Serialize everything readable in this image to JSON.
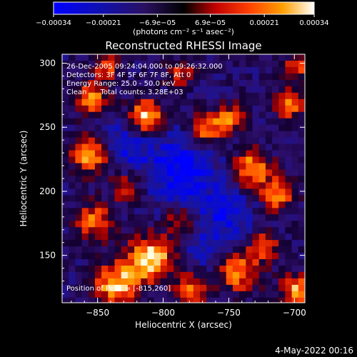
{
  "chart_data": {
    "type": "heatmap",
    "title": "Reconstructed RHESSI Image",
    "xlabel": "Heliocentric X (arcsec)",
    "ylabel": "Heliocentric Y (arcsec)",
    "xlim": [
      -877,
      -692
    ],
    "ylim": [
      113,
      307
    ],
    "x_ticks": [
      -850,
      -800,
      -750,
      -700
    ],
    "x_tick_labels": [
      "−850",
      "−800",
      "−750",
      "−700"
    ],
    "y_ticks": [
      150,
      200,
      250,
      300
    ],
    "y_tick_labels": [
      "150",
      "200",
      "250",
      "300"
    ],
    "colorbar": {
      "range": [
        -0.00034,
        0.00034
      ],
      "tick_values": [
        -0.00034,
        -0.00021,
        -6.9e-05,
        6.9e-05,
        0.00021,
        0.00034
      ],
      "tick_labels": [
        "−0.00034",
        "−0.00021",
        "−6.9e−05",
        "6.9e−05",
        "0.00021",
        "0.00034"
      ],
      "unit_label": "(photons cm⁻² s⁻¹ asec⁻²)"
    },
    "annotations": [
      "26-Dec-2005 09:24:04.000 to 09:26:32.000",
      "Detectors: 3F 4F 5F 6F 7F 8F, Att 0",
      "Energy Range: 25.0 - 50.0 keV",
      "Clean      Total counts: 3.28E+03"
    ],
    "peak_label": "Position of Peak = [-815,260]",
    "peak": [
      -815,
      260
    ],
    "blobs": [
      {
        "x": -815,
        "y": 260,
        "v": 1.0,
        "r": 9
      },
      {
        "x": -812,
        "y": 150,
        "v": 0.95,
        "r": 12
      },
      {
        "x": -838,
        "y": 130,
        "v": 0.85,
        "r": 12
      },
      {
        "x": -858,
        "y": 230,
        "v": 0.75,
        "r": 10
      },
      {
        "x": -858,
        "y": 275,
        "v": 0.7,
        "r": 9
      },
      {
        "x": -855,
        "y": 180,
        "v": 0.65,
        "r": 10
      },
      {
        "x": -770,
        "y": 250,
        "v": 0.75,
        "r": 9
      },
      {
        "x": -752,
        "y": 260,
        "v": 0.6,
        "r": 8
      },
      {
        "x": -735,
        "y": 220,
        "v": 0.8,
        "r": 10
      },
      {
        "x": -715,
        "y": 200,
        "v": 0.7,
        "r": 9
      },
      {
        "x": -705,
        "y": 270,
        "v": 0.65,
        "r": 8
      },
      {
        "x": -745,
        "y": 140,
        "v": 0.7,
        "r": 11
      },
      {
        "x": -700,
        "y": 125,
        "v": 0.75,
        "r": 9
      },
      {
        "x": -780,
        "y": 125,
        "v": 0.6,
        "r": 9
      },
      {
        "x": -790,
        "y": 295,
        "v": 0.55,
        "r": 7
      },
      {
        "x": -845,
        "y": 300,
        "v": 0.6,
        "r": 7
      },
      {
        "x": -725,
        "y": 160,
        "v": 0.6,
        "r": 8
      },
      {
        "x": -790,
        "y": 180,
        "v": 0.5,
        "r": 8
      },
      {
        "x": -830,
        "y": 205,
        "v": 0.5,
        "r": 8
      },
      {
        "x": -700,
        "y": 300,
        "v": 0.55,
        "r": 7
      }
    ],
    "cold_regions": [
      {
        "x": -790,
        "y": 220,
        "v": -0.55,
        "r": 20
      },
      {
        "x": -830,
        "y": 240,
        "v": -0.4,
        "r": 12
      },
      {
        "x": -755,
        "y": 185,
        "v": -0.45,
        "r": 14
      },
      {
        "x": -770,
        "y": 155,
        "v": -0.35,
        "r": 10
      }
    ]
  },
  "footer": {
    "date": "4-May-2022 00:16"
  }
}
